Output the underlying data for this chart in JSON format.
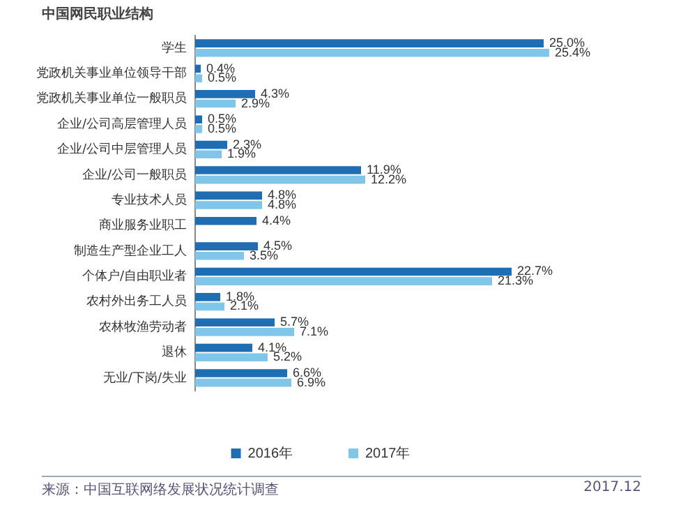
{
  "chart_data": {
    "type": "bar",
    "orientation": "horizontal",
    "title": "中国网民职业结构",
    "categories": [
      "学生",
      "党政机关事业单位领导干部",
      "党政机关事业单位一般职员",
      "企业/公司高层管理人员",
      "企业/公司中层管理人员",
      "企业/公司一般职员",
      "专业技术人员",
      "商业服务业职工",
      "制造生产型企业工人",
      "个体户/自由职业者",
      "农村外出务工人员",
      "农林牧渔劳动者",
      "退休",
      "无业/下岗/失业"
    ],
    "series": [
      {
        "name": "2016年",
        "color": "#1f6db3",
        "values": [
          25.0,
          0.4,
          4.3,
          0.5,
          2.3,
          11.9,
          4.8,
          4.4,
          4.5,
          22.7,
          1.8,
          5.7,
          4.1,
          6.6
        ],
        "value_labels": [
          "25.0%",
          "0.4%",
          "4.3%",
          "0.5%",
          "2.3%",
          "11.9%",
          "4.8%",
          "4.4%",
          "4.5%",
          "22.7%",
          "1.8%",
          "5.7%",
          "4.1%",
          "6.6%"
        ]
      },
      {
        "name": "2017年",
        "color": "#7fc6ea",
        "values": [
          25.4,
          0.5,
          2.9,
          0.5,
          1.9,
          12.2,
          4.8,
          null,
          3.5,
          21.3,
          2.1,
          7.1,
          5.2,
          6.9
        ],
        "value_labels": [
          "25.4%",
          "0.5%",
          "2.9%",
          "0.5%",
          "1.9%",
          "12.2%",
          "4.8%",
          null,
          "3.5%",
          "21.3%",
          "2.1%",
          "7.1%",
          "5.2%",
          "6.9%"
        ]
      }
    ],
    "legend": "bottom",
    "tick_labels": "y",
    "annotations": [
      "来源：中国互联网络发展状况统计调查",
      "2017.12"
    ]
  }
}
